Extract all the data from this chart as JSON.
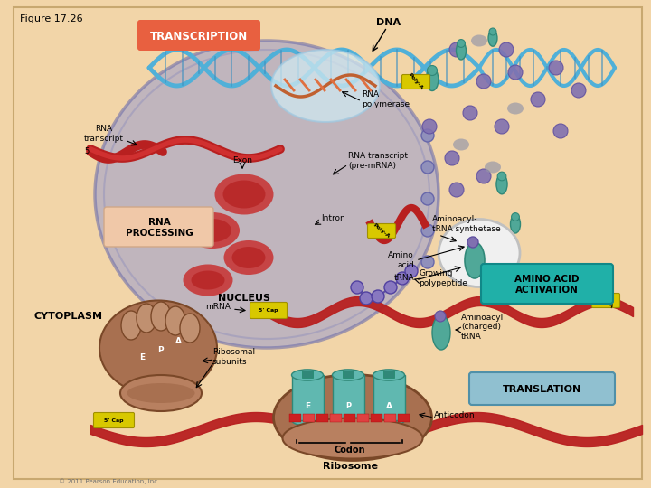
{
  "figure_label": "Figure 17.26",
  "bg_color": "#F2D5A8",
  "nucleus_color": "#9898C8",
  "title_transcription": "TRANSCRIPTION",
  "title_transcription_bg": "#E86040",
  "title_transcription_fg": "white",
  "title_rna_processing": "RNA\nPROCESSING",
  "title_rna_processing_bg": "#F0C8A8",
  "label_dna": "DNA",
  "label_rna_polymerase": "RNA\npolymerase",
  "label_rna_transcript": "RNA\ntranscript",
  "label_exon": "Exon",
  "label_rna_transcript_premrna": "RNA transcript\n(pre-mRNA)",
  "label_intron": "Intron",
  "label_nucleus": "NUCLEUS",
  "label_cytoplasm": "CYTOPLASM",
  "label_mrna": "mRNA",
  "label_growing_polypeptide": "Growing\npolypeptide",
  "label_aminoacyl_trna_synthetase": "Aminoacyl-\ntRNA synthetase",
  "label_amino_acid": "Amino\nacid",
  "label_trna": "tRNA",
  "label_amino_acid_activation": "AMINO ACID\nACTIVATION",
  "label_amino_acid_activation_bg": "#20B0A8",
  "label_aminoacyl_charged_trna": "Aminoacyl\n(charged)\ntRNA",
  "label_ribosomal_subunits": "Ribosomal\nsubunits",
  "label_translation": "TRANSLATION",
  "label_translation_bg": "#90C0D0",
  "label_anticodon": "Anticodon",
  "label_codon": "Codon",
  "label_ribosome": "Ribosome",
  "label_polya": "Poly-A",
  "label_polya_color": "#D8C800",
  "copyright": "© 2011 Pearson Education, Inc.",
  "dna_blue": "#50B0D8",
  "rna_red": "#B82020",
  "teal_color": "#60B8B0",
  "purple_color": "#8878B0",
  "brown_color": "#A87050",
  "brown_dark": "#7A4828",
  "grey_blob": "#C8C8D8"
}
